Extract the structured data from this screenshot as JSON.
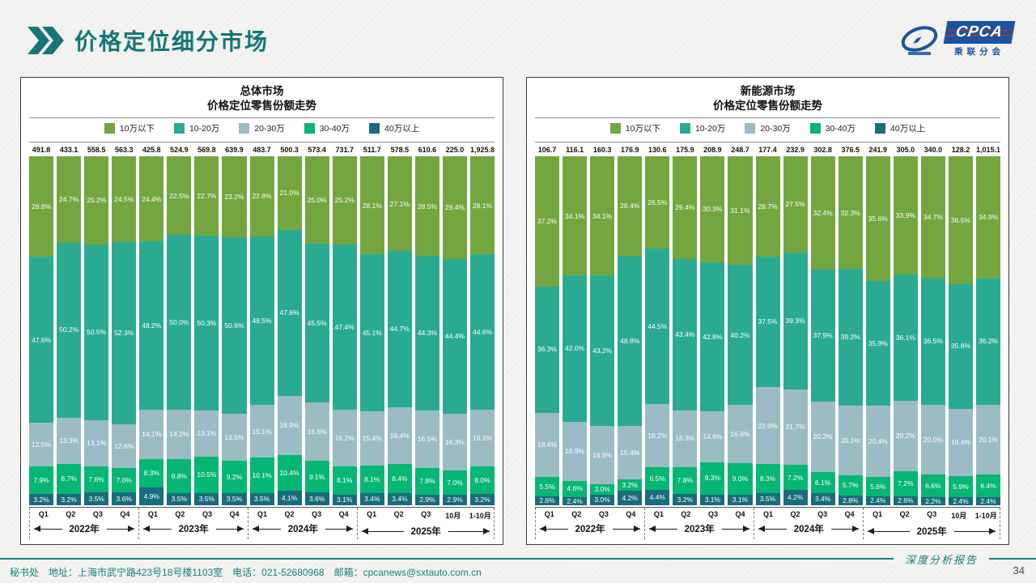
{
  "header": {
    "title": "价格定位细分市场"
  },
  "logo": {
    "main": "CPCA",
    "sub": "乘联分会"
  },
  "colors": {
    "accent": "#147676",
    "under10": "#74A63F",
    "r10_20": "#2AAB91",
    "r20_30": "#9CBCC3",
    "r30_40": "#06B674",
    "over40": "#186C7C",
    "footer_line": "#157C7C",
    "logo_blue": "#1A53A0"
  },
  "legend": [
    "10万以下",
    "10-20万",
    "20-30万",
    "30-40万",
    "40万以上"
  ],
  "axis": {
    "x_labels": [
      "Q1",
      "Q2",
      "Q3",
      "Q4",
      "Q1",
      "Q2",
      "Q3",
      "Q4",
      "Q1",
      "Q2",
      "Q3",
      "Q4",
      "Q1",
      "Q2",
      "Q3",
      "10月",
      "1-10月"
    ],
    "year_groups": [
      {
        "label": "2022年",
        "span": 4
      },
      {
        "label": "2023年",
        "span": 4
      },
      {
        "label": "2024年",
        "span": 4
      },
      {
        "label": "2025年",
        "span": 5
      }
    ]
  },
  "chart_data": [
    {
      "type": "bar",
      "stacked": true,
      "title": "总体市场",
      "subtitle": "价格定位零售份额走势",
      "ylim": [
        0,
        100
      ],
      "grid": false,
      "legend_position": "top",
      "categories": [
        "Q1",
        "Q2",
        "Q3",
        "Q4",
        "Q1",
        "Q2",
        "Q3",
        "Q4",
        "Q1",
        "Q2",
        "Q3",
        "Q4",
        "Q1",
        "Q2",
        "Q3",
        "10月",
        "1-10月"
      ],
      "totals": [
        "491.8",
        "433.1",
        "558.5",
        "563.3",
        "425.8",
        "524.9",
        "569.8",
        "639.9",
        "483.7",
        "500.3",
        "573.4",
        "731.7",
        "511.7",
        "578.5",
        "610.6",
        "225.0",
        "1,925.8"
      ],
      "series": [
        {
          "name": "10万以下",
          "color": "#74A63F",
          "values": [
            28.8,
            24.7,
            25.2,
            24.5,
            24.4,
            22.5,
            22.7,
            23.2,
            22.8,
            21.0,
            25.0,
            25.2,
            28.1,
            27.1,
            28.5,
            29.4,
            28.1
          ]
        },
        {
          "name": "10-20万",
          "color": "#2AAB91",
          "values": [
            47.6,
            50.2,
            50.5,
            52.3,
            48.2,
            50.0,
            50.3,
            50.6,
            48.5,
            47.6,
            45.5,
            47.4,
            45.1,
            44.7,
            44.3,
            44.4,
            44.6
          ]
        },
        {
          "name": "20-30万",
          "color": "#9CBCC3",
          "values": [
            12.5,
            13.3,
            13.1,
            12.6,
            14.1,
            14.2,
            13.1,
            13.5,
            15.1,
            16.9,
            16.8,
            16.2,
            15.4,
            16.4,
            16.5,
            16.3,
            16.1
          ]
        },
        {
          "name": "30-40万",
          "color": "#06B674",
          "values": [
            7.9,
            8.7,
            7.6,
            7.0,
            8.3,
            9.8,
            10.5,
            9.2,
            10.1,
            10.4,
            9.1,
            8.1,
            8.1,
            8.4,
            7.8,
            7.0,
            8.0
          ]
        },
        {
          "name": "40万以上",
          "color": "#186C7C",
          "values": [
            3.2,
            3.2,
            3.5,
            3.6,
            4.9,
            3.5,
            3.5,
            3.5,
            3.5,
            4.1,
            3.6,
            3.1,
            3.4,
            3.4,
            2.9,
            2.9,
            3.2
          ]
        }
      ]
    },
    {
      "type": "bar",
      "stacked": true,
      "title": "新能源市场",
      "subtitle": "价格定位零售份额走势",
      "ylim": [
        0,
        100
      ],
      "grid": false,
      "legend_position": "top",
      "categories": [
        "Q1",
        "Q2",
        "Q3",
        "Q4",
        "Q1",
        "Q2",
        "Q3",
        "Q4",
        "Q1",
        "Q2",
        "Q3",
        "Q4",
        "Q1",
        "Q2",
        "Q3",
        "10月",
        "1-10月"
      ],
      "totals": [
        "106.7",
        "116.1",
        "160.3",
        "176.9",
        "130.6",
        "175.9",
        "208.9",
        "248.7",
        "177.4",
        "232.9",
        "302.8",
        "376.5",
        "241.9",
        "305.0",
        "340.0",
        "128.2",
        "1,015.1"
      ],
      "series": [
        {
          "name": "10万以下",
          "color": "#74A63F",
          "values": [
            37.2,
            34.1,
            34.1,
            28.4,
            26.5,
            29.4,
            30.3,
            31.1,
            28.7,
            27.5,
            32.4,
            32.3,
            35.6,
            33.9,
            34.7,
            36.5,
            34.9
          ]
        },
        {
          "name": "10-20万",
          "color": "#2AAB91",
          "values": [
            36.3,
            42.0,
            43.2,
            48.8,
            44.5,
            43.4,
            42.8,
            40.2,
            37.5,
            39.3,
            37.9,
            39.2,
            35.9,
            36.1,
            36.5,
            35.8,
            36.2
          ]
        },
        {
          "name": "20-30万",
          "color": "#9CBCC3",
          "values": [
            18.4,
            16.9,
            16.8,
            15.4,
            18.2,
            16.3,
            14.6,
            16.6,
            22.0,
            21.7,
            20.2,
            20.1,
            20.4,
            20.2,
            20.0,
            19.4,
            20.1
          ]
        },
        {
          "name": "30-40万",
          "color": "#06B674",
          "values": [
            5.5,
            4.6,
            3.0,
            3.2,
            6.5,
            7.8,
            9.3,
            9.0,
            8.3,
            7.2,
            6.1,
            5.7,
            5.6,
            7.2,
            6.6,
            5.9,
            6.4
          ]
        },
        {
          "name": "40万以上",
          "color": "#186C7C",
          "values": [
            2.6,
            2.4,
            3.0,
            4.2,
            4.4,
            3.2,
            3.1,
            3.1,
            3.5,
            4.2,
            3.4,
            2.8,
            2.4,
            2.6,
            2.2,
            2.4,
            2.4
          ]
        }
      ]
    }
  ],
  "footer": {
    "contact": "秘书处　地址：上海市武宁路423号18号楼1103室　电话：021-52680968　邮箱：cpcanews@sxtauto.com.cn",
    "report_tag": "深度分析报告",
    "page_number": "34"
  }
}
